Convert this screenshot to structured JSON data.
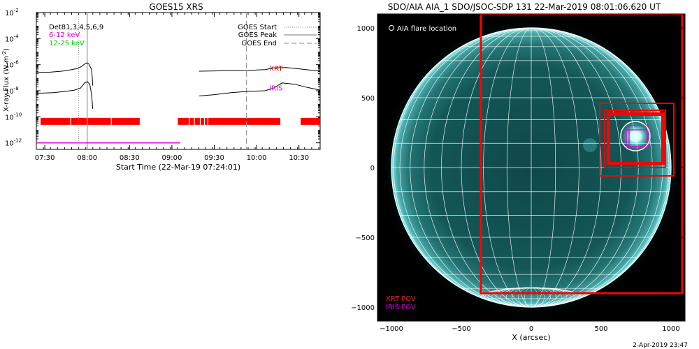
{
  "chart_data": [
    {
      "type": "line",
      "title": "GOES15 XRS",
      "xlabel": "Start Time (22-Mar-19 07:24:01)",
      "ylabel": "X-ray Flux (W m",
      "ylabel_sup": "-2",
      "ylabel_end": ")",
      "y_scale": "log",
      "x_ticks": [
        {
          "t": 7.5,
          "label": "07:30"
        },
        {
          "t": 8.0,
          "label": "08:00"
        },
        {
          "t": 8.5,
          "label": "08:30"
        },
        {
          "t": 9.0,
          "label": "09:00"
        },
        {
          "t": 9.5,
          "label": "09:30"
        },
        {
          "t": 10.0,
          "label": "10:00"
        },
        {
          "t": 10.5,
          "label": "10:30"
        }
      ],
      "y_ticks": [
        {
          "exp": -12,
          "label": "10",
          "sup": "-12"
        },
        {
          "exp": -10,
          "label": "10",
          "sup": "-10"
        },
        {
          "exp": -8,
          "label": "10",
          "sup": "-8"
        },
        {
          "exp": -6,
          "label": "10",
          "sup": "-6"
        },
        {
          "exp": -4,
          "label": "10",
          "sup": "-4"
        },
        {
          "exp": -2,
          "label": "10",
          "sup": "-2"
        }
      ],
      "xlim": [
        7.4,
        10.75
      ],
      "ylim_exp": [
        -12.5,
        -2
      ],
      "legend_left": [
        {
          "text": "Det81,3,4,5,6,9",
          "color": "#000000"
        },
        {
          "text": "6-12 keV",
          "color": "#e000e0"
        },
        {
          "text": "12-25 keV",
          "color": "#00cc00"
        }
      ],
      "legend_right": [
        {
          "text": "GOES Start",
          "style": "dotted"
        },
        {
          "text": "GOES Peak",
          "style": "solid"
        },
        {
          "text": "GOES End",
          "style": "dashed"
        }
      ],
      "event_lines": {
        "start": 7.9,
        "peak": 8.0,
        "end": 9.88
      },
      "markers": [
        {
          "text": "XRT",
          "color": "#cc0000",
          "t": 10.15,
          "exp": -6.25
        },
        {
          "text": "IRIS",
          "color": "#e000e0",
          "t": 10.15,
          "exp": -7.75
        }
      ],
      "series": [
        {
          "name": "",
          "color": "#000000",
          "points": [
            [
              7.4,
              -6.6
            ],
            [
              7.55,
              -6.58
            ],
            [
              7.7,
              -6.5
            ],
            [
              7.8,
              -6.4
            ],
            [
              7.88,
              -6.3
            ],
            [
              7.93,
              -6.15
            ],
            [
              7.97,
              -5.95
            ],
            [
              8.0,
              -5.85
            ],
            [
              8.02,
              -5.95
            ],
            [
              8.05,
              -6.35
            ],
            [
              8.06,
              -7.0
            ],
            [
              8.065,
              -7.6
            ]
          ]
        },
        {
          "name": "",
          "color": "#000000",
          "points": [
            [
              9.32,
              -6.5
            ],
            [
              9.5,
              -6.48
            ],
            [
              9.7,
              -6.45
            ],
            [
              9.9,
              -6.44
            ],
            [
              10.1,
              -6.38
            ],
            [
              10.2,
              -6.25
            ],
            [
              10.35,
              -6.22
            ],
            [
              10.5,
              -6.32
            ],
            [
              10.75,
              -6.5
            ]
          ]
        },
        {
          "name": "",
          "color": "#000000",
          "points": [
            [
              7.4,
              -8.2
            ],
            [
              7.6,
              -8.15
            ],
            [
              7.75,
              -8.05
            ],
            [
              7.85,
              -7.95
            ],
            [
              7.92,
              -7.8
            ],
            [
              7.97,
              -7.4
            ],
            [
              8.0,
              -7.3
            ],
            [
              8.03,
              -7.5
            ],
            [
              8.05,
              -8.2
            ],
            [
              8.06,
              -8.9
            ],
            [
              8.065,
              -9.4
            ]
          ]
        },
        {
          "name": "",
          "color": "#000000",
          "points": [
            [
              9.32,
              -8.4
            ],
            [
              9.5,
              -8.3
            ],
            [
              9.7,
              -8.15
            ],
            [
              9.9,
              -8.05
            ],
            [
              10.1,
              -8.0
            ],
            [
              10.2,
              -7.8
            ],
            [
              10.3,
              -7.4
            ],
            [
              10.45,
              -7.5
            ],
            [
              10.6,
              -7.75
            ],
            [
              10.75,
              -7.95
            ]
          ]
        },
        {
          "name": "6-12 keV",
          "color": "#e000e0",
          "points": [
            [
              7.4,
              -12.0
            ],
            [
              9.1,
              -12.0
            ]
          ]
        }
      ],
      "coverage_bars": [
        [
          7.45,
          7.8
        ],
        [
          7.81,
          8.28
        ],
        [
          8.29,
          8.62
        ],
        [
          9.07,
          9.2
        ],
        [
          9.21,
          9.26
        ],
        [
          9.27,
          9.33
        ],
        [
          9.34,
          9.38
        ],
        [
          9.39,
          9.42
        ],
        [
          9.43,
          10.28
        ],
        [
          10.52,
          10.75
        ]
      ],
      "coverage_exp": -10.35
    },
    {
      "type": "scatter",
      "title": "SDO/AIA AIA_1 SDO/JSOC-SDP 131 22-Mar-2019 08:01:06.620 UT",
      "xlabel": "X (arcsec)",
      "ylabel": "",
      "xlim": [
        -1100,
        1100
      ],
      "ylim": [
        -1100,
        1100
      ],
      "x_ticks": [
        -1000,
        -500,
        0,
        500,
        1000
      ],
      "y_ticks": [
        -1000,
        -500,
        0,
        500,
        1000
      ],
      "x_tick_labels": [
        "−1000",
        "−500",
        "0",
        "500",
        "1000"
      ],
      "y_tick_labels": [
        "−1000",
        "−500",
        "0",
        "500",
        "1000"
      ],
      "solar_radius": 1000,
      "legend_top": "AIA flare location",
      "legend_bottom": [
        {
          "text": "XRT FOV",
          "color": "#ff2020"
        },
        {
          "text": "IRIS FOV",
          "color": "#e000e0"
        }
      ],
      "flare_location": [
        745,
        225
      ],
      "xrt_fov": [
        {
          "x0": -360,
          "y0": -900,
          "x1": 1080,
          "y1": 1100
        },
        {
          "x0": 490,
          "y0": -60,
          "x1": 1020,
          "y1": 460
        },
        {
          "x0": 525,
          "y0": 0,
          "x1": 960,
          "y1": 410
        },
        {
          "x0": 545,
          "y0": 25,
          "x1": 950,
          "y1": 390
        },
        {
          "x0": 555,
          "y0": 30,
          "x1": 940,
          "y1": 380
        },
        {
          "x0": 560,
          "y0": 35,
          "x1": 935,
          "y1": 375
        }
      ],
      "iris_fov": [
        {
          "x0": 680,
          "y0": 130,
          "x1": 830,
          "y1": 270
        },
        {
          "x0": 700,
          "y0": 150,
          "x1": 840,
          "y1": 300
        }
      ]
    }
  ],
  "footer": {
    "timestamp": "2-Apr-2019 23:47"
  },
  "colors": {
    "background": "#ffffff",
    "disk_space": "#000000",
    "disk_base": "#0f4a4a",
    "disk_limb": "#7be6e6",
    "grid": "#ffffff",
    "xrt_box": "#ff0000",
    "iris_box": "#e000e0"
  }
}
